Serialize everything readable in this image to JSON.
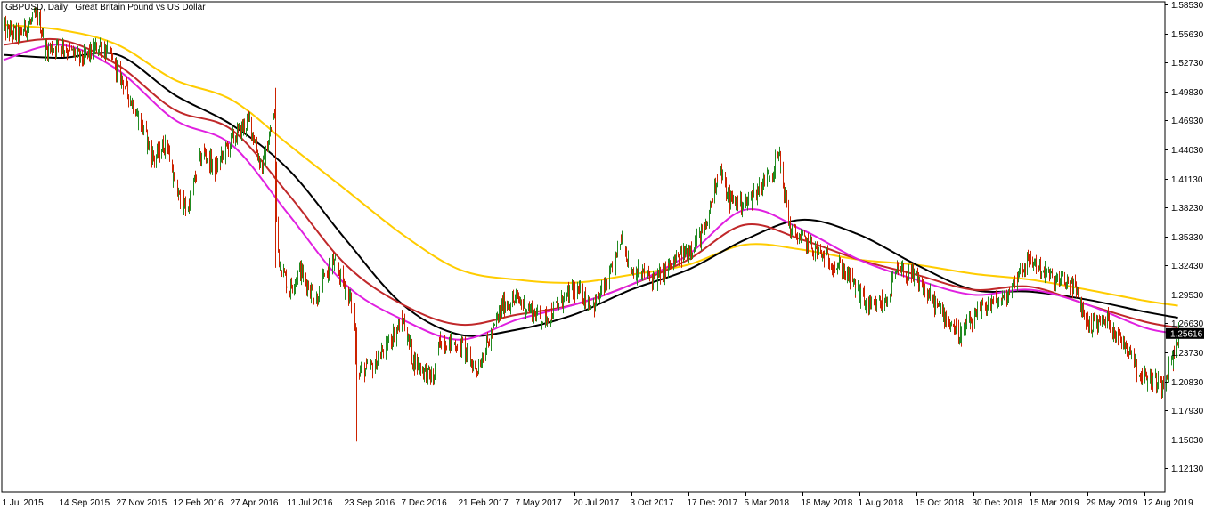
{
  "chart_data": {
    "type": "candlestick",
    "title": "GBPUSD, Daily:  Great Britain Pound vs US Dollar",
    "symbol": "GBPUSD",
    "timeframe": "Daily",
    "description": "Great Britain Pound vs US Dollar",
    "current_price": 1.25616,
    "ylim": [
      1.0975,
      1.5881
    ],
    "y_ticks": [
      "1.58530",
      "1.55630",
      "1.52730",
      "1.49830",
      "1.46930",
      "1.44030",
      "1.41130",
      "1.38230",
      "1.35330",
      "1.32430",
      "1.29530",
      "1.26630",
      "1.23730",
      "1.20830",
      "1.17930",
      "1.15030",
      "1.12130"
    ],
    "x_ticks": [
      "1 Jul 2015",
      "14 Sep 2015",
      "27 Nov 2015",
      "12 Feb 2016",
      "27 Apr 2016",
      "11 Jul 2016",
      "23 Sep 2016",
      "7 Dec 2016",
      "21 Feb 2017",
      "7 May 2017",
      "20 Jul 2017",
      "3 Oct 2017",
      "17 Dec 2017",
      "5 Mar 2018",
      "18 May 2018",
      "1 Aug 2018",
      "15 Oct 2018",
      "30 Dec 2018",
      "15 Mar 2019",
      "29 May 2019",
      "12 Aug 2019"
    ],
    "price_path": [
      [
        "2015-07-01",
        1.56
      ],
      [
        "2015-07-20",
        1.555
      ],
      [
        "2015-08-15",
        1.575
      ],
      [
        "2015-08-25",
        1.54
      ],
      [
        "2015-09-14",
        1.545
      ],
      [
        "2015-10-10",
        1.53
      ],
      [
        "2015-11-05",
        1.545
      ],
      [
        "2015-11-27",
        1.52
      ],
      [
        "2015-12-20",
        1.48
      ],
      [
        "2016-01-15",
        1.43
      ],
      [
        "2016-02-01",
        1.45
      ],
      [
        "2016-02-12",
        1.4
      ],
      [
        "2016-02-28",
        1.38
      ],
      [
        "2016-03-20",
        1.44
      ],
      [
        "2016-04-05",
        1.42
      ],
      [
        "2016-04-27",
        1.45
      ],
      [
        "2016-05-20",
        1.47
      ],
      [
        "2016-06-05",
        1.42
      ],
      [
        "2016-06-22",
        1.475
      ],
      [
        "2016-06-24",
        1.37
      ],
      [
        "2016-06-28",
        1.33
      ],
      [
        "2016-07-11",
        1.3
      ],
      [
        "2016-07-25",
        1.32
      ],
      [
        "2016-08-15",
        1.29
      ],
      [
        "2016-09-05",
        1.33
      ],
      [
        "2016-09-23",
        1.3
      ],
      [
        "2016-10-03",
        1.28
      ],
      [
        "2016-10-07",
        1.22
      ],
      [
        "2016-10-25",
        1.22
      ],
      [
        "2016-11-15",
        1.245
      ],
      [
        "2016-12-07",
        1.27
      ],
      [
        "2016-12-20",
        1.23
      ],
      [
        "2017-01-16",
        1.21
      ],
      [
        "2017-01-25",
        1.25
      ],
      [
        "2017-02-21",
        1.245
      ],
      [
        "2017-03-14",
        1.22
      ],
      [
        "2017-04-01",
        1.25
      ],
      [
        "2017-04-18",
        1.285
      ],
      [
        "2017-05-07",
        1.29
      ],
      [
        "2017-06-10",
        1.27
      ],
      [
        "2017-07-20",
        1.3
      ],
      [
        "2017-08-15",
        1.285
      ],
      [
        "2017-09-10",
        1.32
      ],
      [
        "2017-09-20",
        1.355
      ],
      [
        "2017-10-03",
        1.32
      ],
      [
        "2017-11-03",
        1.31
      ],
      [
        "2017-12-17",
        1.34
      ],
      [
        "2018-01-10",
        1.36
      ],
      [
        "2018-01-28",
        1.425
      ],
      [
        "2018-02-10",
        1.39
      ],
      [
        "2018-03-05",
        1.385
      ],
      [
        "2018-04-10",
        1.42
      ],
      [
        "2018-04-17",
        1.435
      ],
      [
        "2018-05-02",
        1.36
      ],
      [
        "2018-05-18",
        1.35
      ],
      [
        "2018-06-10",
        1.335
      ],
      [
        "2018-07-10",
        1.32
      ],
      [
        "2018-08-15",
        1.28
      ],
      [
        "2018-09-05",
        1.29
      ],
      [
        "2018-09-20",
        1.32
      ],
      [
        "2018-10-15",
        1.31
      ],
      [
        "2018-11-15",
        1.28
      ],
      [
        "2018-12-12",
        1.255
      ],
      [
        "2018-12-30",
        1.27
      ],
      [
        "2019-01-15",
        1.285
      ],
      [
        "2019-02-10",
        1.29
      ],
      [
        "2019-03-01",
        1.32
      ],
      [
        "2019-03-15",
        1.33
      ],
      [
        "2019-04-15",
        1.31
      ],
      [
        "2019-05-10",
        1.305
      ],
      [
        "2019-05-29",
        1.265
      ],
      [
        "2019-06-25",
        1.27
      ],
      [
        "2019-07-10",
        1.25
      ],
      [
        "2019-07-25",
        1.24
      ],
      [
        "2019-08-05",
        1.215
      ],
      [
        "2019-08-20",
        1.21
      ],
      [
        "2019-09-03",
        1.205
      ],
      [
        "2019-09-20",
        1.235
      ],
      [
        "2019-09-25",
        1.25616
      ]
    ],
    "moving_averages": [
      {
        "color": "#ffcc00",
        "points": [
          [
            "2015-07-01",
            1.565
          ],
          [
            "2015-09-14",
            1.56
          ],
          [
            "2015-11-27",
            1.545
          ],
          [
            "2016-02-12",
            1.51
          ],
          [
            "2016-04-27",
            1.49
          ],
          [
            "2016-07-11",
            1.445
          ],
          [
            "2016-09-23",
            1.4
          ],
          [
            "2016-12-07",
            1.355
          ],
          [
            "2017-02-21",
            1.32
          ],
          [
            "2017-05-07",
            1.31
          ],
          [
            "2017-07-20",
            1.307
          ],
          [
            "2017-10-03",
            1.315
          ],
          [
            "2017-12-17",
            1.325
          ],
          [
            "2018-03-05",
            1.345
          ],
          [
            "2018-05-18",
            1.34
          ],
          [
            "2018-08-01",
            1.33
          ],
          [
            "2018-10-15",
            1.325
          ],
          [
            "2018-12-30",
            1.316
          ],
          [
            "2019-03-15",
            1.31
          ],
          [
            "2019-05-29",
            1.3
          ],
          [
            "2019-08-12",
            1.289
          ],
          [
            "2019-09-25",
            1.284
          ]
        ]
      },
      {
        "color": "#000000",
        "points": [
          [
            "2015-07-01",
            1.535
          ],
          [
            "2015-09-14",
            1.532
          ],
          [
            "2015-11-27",
            1.535
          ],
          [
            "2016-02-12",
            1.495
          ],
          [
            "2016-04-27",
            1.465
          ],
          [
            "2016-07-11",
            1.42
          ],
          [
            "2016-09-23",
            1.35
          ],
          [
            "2016-12-07",
            1.285
          ],
          [
            "2017-02-21",
            1.255
          ],
          [
            "2017-05-07",
            1.26
          ],
          [
            "2017-07-20",
            1.275
          ],
          [
            "2017-10-03",
            1.3
          ],
          [
            "2017-12-17",
            1.32
          ],
          [
            "2018-03-05",
            1.35
          ],
          [
            "2018-05-18",
            1.37
          ],
          [
            "2018-08-01",
            1.355
          ],
          [
            "2018-10-15",
            1.325
          ],
          [
            "2018-12-30",
            1.3
          ],
          [
            "2019-03-15",
            1.298
          ],
          [
            "2019-05-29",
            1.29
          ],
          [
            "2019-08-12",
            1.278
          ],
          [
            "2019-09-25",
            1.272
          ]
        ]
      },
      {
        "color": "#c0282a",
        "points": [
          [
            "2015-07-01",
            1.545
          ],
          [
            "2015-09-14",
            1.55
          ],
          [
            "2015-11-27",
            1.525
          ],
          [
            "2016-02-12",
            1.48
          ],
          [
            "2016-04-27",
            1.46
          ],
          [
            "2016-07-11",
            1.395
          ],
          [
            "2016-09-23",
            1.325
          ],
          [
            "2016-12-07",
            1.285
          ],
          [
            "2017-02-21",
            1.265
          ],
          [
            "2017-05-07",
            1.275
          ],
          [
            "2017-07-20",
            1.285
          ],
          [
            "2017-10-03",
            1.305
          ],
          [
            "2017-12-17",
            1.33
          ],
          [
            "2018-03-05",
            1.365
          ],
          [
            "2018-05-18",
            1.35
          ],
          [
            "2018-08-01",
            1.33
          ],
          [
            "2018-10-15",
            1.315
          ],
          [
            "2018-12-30",
            1.3
          ],
          [
            "2019-03-15",
            1.303
          ],
          [
            "2019-05-29",
            1.285
          ],
          [
            "2019-08-12",
            1.268
          ],
          [
            "2019-09-25",
            1.262
          ]
        ]
      },
      {
        "color": "#e020e0",
        "points": [
          [
            "2015-07-01",
            1.53
          ],
          [
            "2015-09-14",
            1.545
          ],
          [
            "2015-11-27",
            1.52
          ],
          [
            "2016-02-12",
            1.47
          ],
          [
            "2016-04-27",
            1.445
          ],
          [
            "2016-07-11",
            1.375
          ],
          [
            "2016-09-23",
            1.305
          ],
          [
            "2016-12-07",
            1.27
          ],
          [
            "2017-02-21",
            1.25
          ],
          [
            "2017-05-07",
            1.27
          ],
          [
            "2017-07-20",
            1.285
          ],
          [
            "2017-10-03",
            1.305
          ],
          [
            "2017-12-17",
            1.335
          ],
          [
            "2018-03-05",
            1.38
          ],
          [
            "2018-05-18",
            1.36
          ],
          [
            "2018-08-01",
            1.33
          ],
          [
            "2018-10-15",
            1.31
          ],
          [
            "2018-12-30",
            1.295
          ],
          [
            "2019-03-15",
            1.3
          ],
          [
            "2019-05-29",
            1.285
          ],
          [
            "2019-08-12",
            1.262
          ],
          [
            "2019-09-25",
            1.256
          ]
        ]
      }
    ],
    "colors": {
      "up": "#228b22",
      "down": "#cc2200",
      "price_label_bg": "#000000",
      "price_label_fg": "#ffffff"
    }
  }
}
